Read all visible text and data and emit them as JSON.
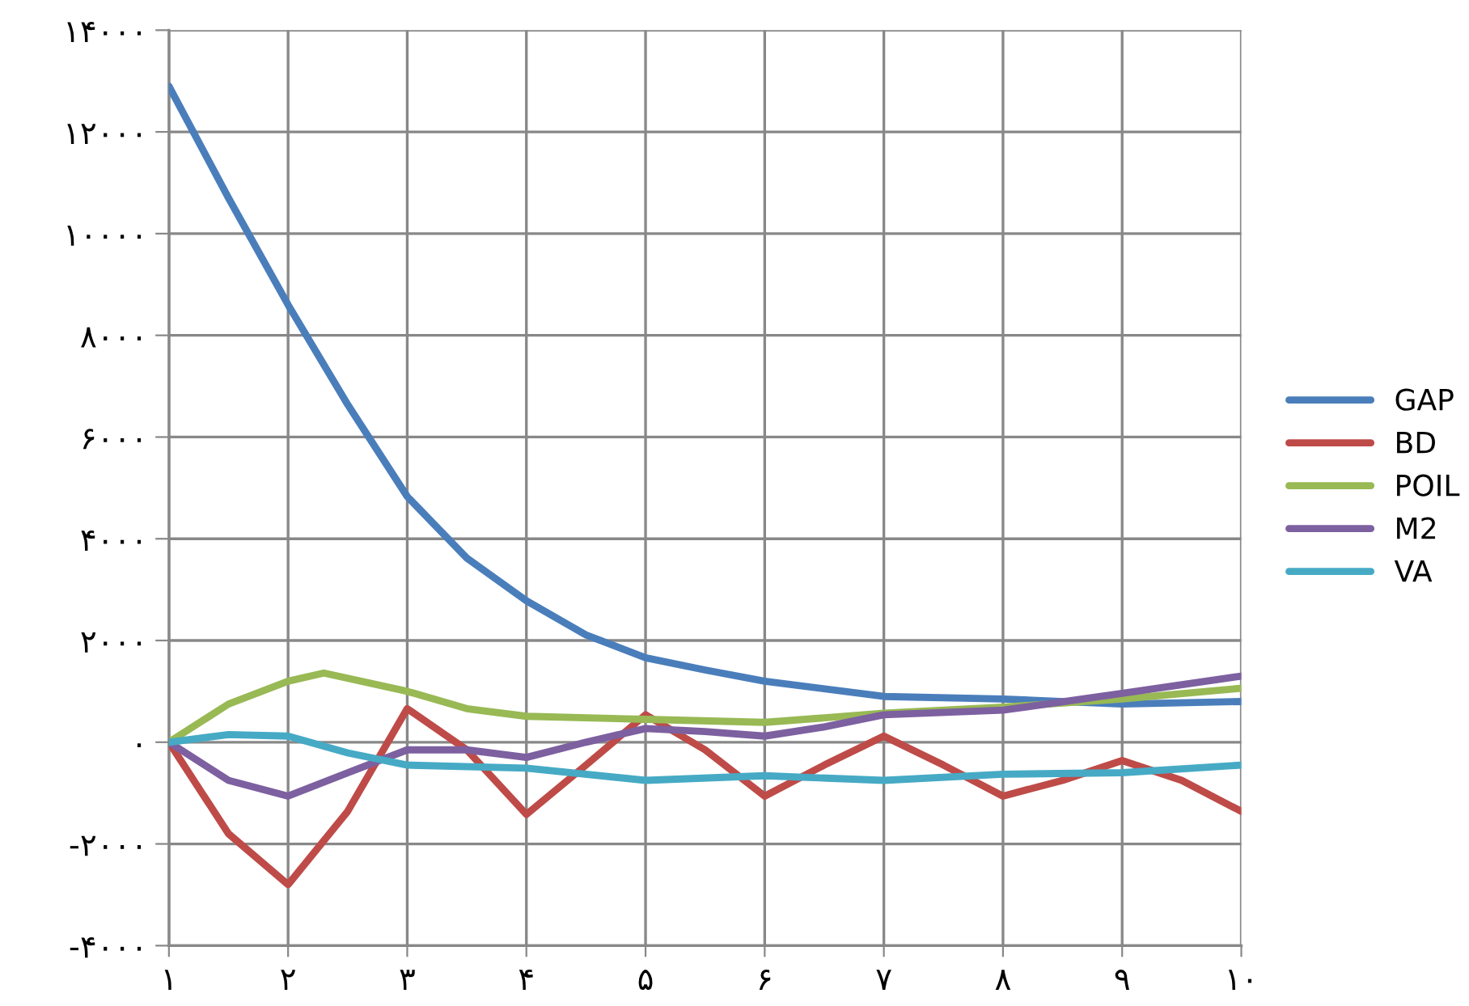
{
  "chart_data": {
    "type": "line",
    "xlim": [
      1,
      10
    ],
    "xticks": [
      {
        "value": 1,
        "label": "۱"
      },
      {
        "value": 2,
        "label": "۲"
      },
      {
        "value": 3,
        "label": "۳"
      },
      {
        "value": 4,
        "label": "۴"
      },
      {
        "value": 5,
        "label": "۵"
      },
      {
        "value": 6,
        "label": "۶"
      },
      {
        "value": 7,
        "label": "۷"
      },
      {
        "value": 8,
        "label": "۸"
      },
      {
        "value": 9,
        "label": "۹"
      },
      {
        "value": 10,
        "label": "۱۰"
      }
    ],
    "ylim": [
      -4000,
      14000
    ],
    "yticks": [
      {
        "value": -4000,
        "label": "-۴۰۰۰"
      },
      {
        "value": -2000,
        "label": "-۲۰۰۰"
      },
      {
        "value": 0,
        "label": "۰"
      },
      {
        "value": 2000,
        "label": "۲۰۰۰"
      },
      {
        "value": 4000,
        "label": "۴۰۰۰"
      },
      {
        "value": 6000,
        "label": "۶۰۰۰"
      },
      {
        "value": 8000,
        "label": "۸۰۰۰"
      },
      {
        "value": 10000,
        "label": "۱۰۰۰۰"
      },
      {
        "value": 12000,
        "label": "۱۲۰۰۰"
      },
      {
        "value": 14000,
        "label": "۱۴۰۰۰"
      }
    ],
    "grid": true,
    "legend": "right",
    "marker": "none",
    "line_style": "solid",
    "series": [
      {
        "name": "GAP",
        "color": "#4a7ebb",
        "x": [
          1,
          1.5,
          2,
          2.5,
          3,
          3.5,
          4,
          4.5,
          5,
          5.5,
          6,
          7,
          8,
          9,
          10
        ],
        "values": [
          12900,
          10700,
          8600,
          6640,
          4830,
          3620,
          2780,
          2110,
          1660,
          1420,
          1200,
          900,
          850,
          750,
          800
        ]
      },
      {
        "name": "BD",
        "color": "#be4b48",
        "x": [
          1,
          1.5,
          2,
          2.5,
          3,
          3.5,
          4,
          4.5,
          5,
          5.5,
          6,
          6.5,
          7,
          7.5,
          8,
          8.5,
          9,
          9.5,
          10
        ],
        "values": [
          0,
          -1800,
          -2800,
          -1360,
          660,
          -150,
          -1420,
          -450,
          540,
          -150,
          -1060,
          -450,
          120,
          -450,
          -1060,
          -750,
          -360,
          -750,
          -1360
        ]
      },
      {
        "name": "POIL",
        "color": "#98b954",
        "x": [
          1,
          1.5,
          2,
          2.3,
          3,
          3.5,
          4,
          5,
          6,
          7,
          8,
          9,
          10
        ],
        "values": [
          0,
          750,
          1200,
          1360,
          1000,
          660,
          510,
          450,
          390,
          570,
          690,
          850,
          1060
        ]
      },
      {
        "name": "M2",
        "color": "#7d60a0",
        "x": [
          1,
          1.5,
          2,
          2.5,
          3,
          3.5,
          4,
          4.5,
          5,
          5.5,
          6,
          6.5,
          7,
          8,
          9,
          10
        ],
        "values": [
          0,
          -750,
          -1060,
          -600,
          -150,
          -150,
          -300,
          0,
          270,
          210,
          120,
          300,
          540,
          630,
          960,
          1300
        ]
      },
      {
        "name": "VA",
        "color": "#46aac5",
        "x": [
          1,
          1.5,
          2,
          2.5,
          3,
          4,
          5,
          6,
          7,
          8,
          9,
          10
        ],
        "values": [
          0,
          150,
          120,
          -210,
          -450,
          -510,
          -750,
          -660,
          -750,
          -630,
          -600,
          -450
        ]
      }
    ]
  }
}
